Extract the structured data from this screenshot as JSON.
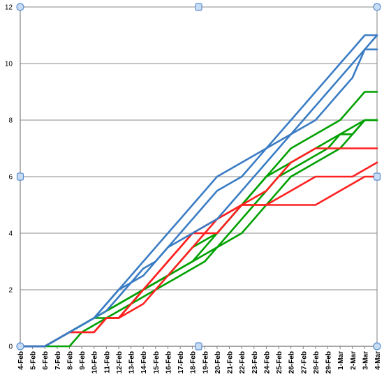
{
  "chart_data": {
    "type": "line",
    "title": "",
    "xlabel": "",
    "ylabel": "",
    "ylim": [
      0,
      12
    ],
    "yticks": [
      "0",
      "2",
      "4",
      "6",
      "8",
      "10",
      "12"
    ],
    "grid": "horizontal",
    "x": [
      "4-Feb",
      "5-Feb",
      "6-Feb",
      "7-Feb",
      "8-Feb",
      "9-Feb",
      "10-Feb",
      "11-Feb",
      "12-Feb",
      "13-Feb",
      "14-Feb",
      "15-Feb",
      "16-Feb",
      "17-Feb",
      "18-Feb",
      "19-Feb",
      "20-Feb",
      "21-Feb",
      "22-Feb",
      "23-Feb",
      "24-Feb",
      "25-Feb",
      "26-Feb",
      "27-Feb",
      "28-Feb",
      "29-Feb",
      "1-Mar",
      "2-Mar",
      "3-Mar",
      "4-Mar"
    ],
    "series": [
      {
        "color": "#3a7cc4",
        "values": [
          0,
          0,
          0,
          0.25,
          0.5,
          0.75,
          1,
          1.5,
          2,
          2.5,
          3,
          3.5,
          4,
          4.5,
          5,
          5.5,
          6,
          6.25,
          6.5,
          6.75,
          7,
          7.5,
          8,
          8.5,
          9,
          9.5,
          10,
          10.5,
          11,
          11
        ]
      },
      {
        "color": "#3a7cc4",
        "values": [
          0,
          0,
          0,
          0.25,
          0.5,
          0.75,
          1,
          1.5,
          2,
          2.25,
          2.5,
          3,
          3.5,
          3.75,
          4,
          4.25,
          4.5,
          5,
          5.5,
          6,
          6.5,
          7,
          7.5,
          8,
          8.5,
          9,
          9.5,
          10,
          10.5,
          11
        ]
      },
      {
        "color": "#3a7cc4",
        "values": [
          0,
          0,
          0,
          0.25,
          0.5,
          0.75,
          1,
          1.25,
          1.75,
          2.25,
          2.75,
          3,
          3.5,
          4,
          4.5,
          5,
          5.5,
          5.75,
          6,
          6.5,
          7,
          7.25,
          7.5,
          7.75,
          8,
          8.5,
          9,
          9.5,
          10.5,
          10.5
        ]
      },
      {
        "color": "#00a000",
        "values": [
          0,
          0,
          0,
          0.25,
          0.5,
          0.75,
          1,
          1,
          1,
          1.5,
          2,
          2.25,
          2.5,
          2.75,
          3,
          3.5,
          4,
          4.5,
          5,
          5.5,
          6,
          6.5,
          7,
          7.25,
          7.5,
          7.75,
          8,
          8.5,
          9,
          9
        ]
      },
      {
        "color": "#00a000",
        "values": [
          0,
          0,
          0,
          0.25,
          0.5,
          0.75,
          1,
          1.25,
          1.5,
          1.75,
          2,
          2.25,
          2.5,
          3,
          3.5,
          3.75,
          4,
          4.5,
          5,
          5.5,
          6,
          6.25,
          6.5,
          6.75,
          7,
          7.25,
          7.5,
          7.75,
          8,
          8
        ]
      },
      {
        "color": "#00a000",
        "values": [
          0,
          0,
          0,
          0,
          0,
          0.5,
          0.75,
          1,
          1.25,
          1.5,
          1.75,
          2,
          2.25,
          2.5,
          2.75,
          3,
          3.5,
          4,
          4.5,
          5,
          5.5,
          6,
          6.25,
          6.5,
          6.75,
          7,
          7.5,
          7.5,
          8,
          8
        ]
      },
      {
        "color": "#00a000",
        "values": [
          0,
          0,
          0,
          0.25,
          0.5,
          0.75,
          1,
          1.25,
          1.5,
          1.75,
          2,
          2.25,
          2.5,
          2.75,
          3,
          3.25,
          3.5,
          3.75,
          4,
          4.5,
          5,
          5.5,
          6,
          6.25,
          6.5,
          6.75,
          7,
          7.5,
          8,
          8
        ]
      },
      {
        "color": "#ff2020",
        "values": [
          0,
          0,
          0,
          0.25,
          0.5,
          0.5,
          0.5,
          1,
          1,
          1.5,
          2,
          2.5,
          3,
          3.5,
          4,
          4,
          4,
          4.5,
          5,
          5,
          5,
          5,
          5,
          5,
          5,
          5.25,
          5.5,
          5.75,
          6,
          6
        ]
      },
      {
        "color": "#ff2020",
        "values": [
          0,
          0,
          0,
          0.25,
          0.5,
          0.5,
          0.5,
          1,
          1,
          1.25,
          1.5,
          2,
          2.5,
          3,
          3.5,
          4,
          4.5,
          4.75,
          5,
          5,
          5,
          5.25,
          5.5,
          5.75,
          6,
          6,
          6,
          6,
          6.25,
          6.5
        ]
      },
      {
        "color": "#ff2020",
        "values": [
          0,
          0,
          0,
          0.25,
          0.5,
          0.5,
          0.5,
          1,
          1,
          1.5,
          2,
          2.5,
          3,
          3.5,
          4,
          4.25,
          4.5,
          4.75,
          5,
          5.25,
          5.5,
          6,
          6.5,
          6.75,
          7,
          7,
          7,
          7,
          7,
          7
        ]
      }
    ]
  }
}
